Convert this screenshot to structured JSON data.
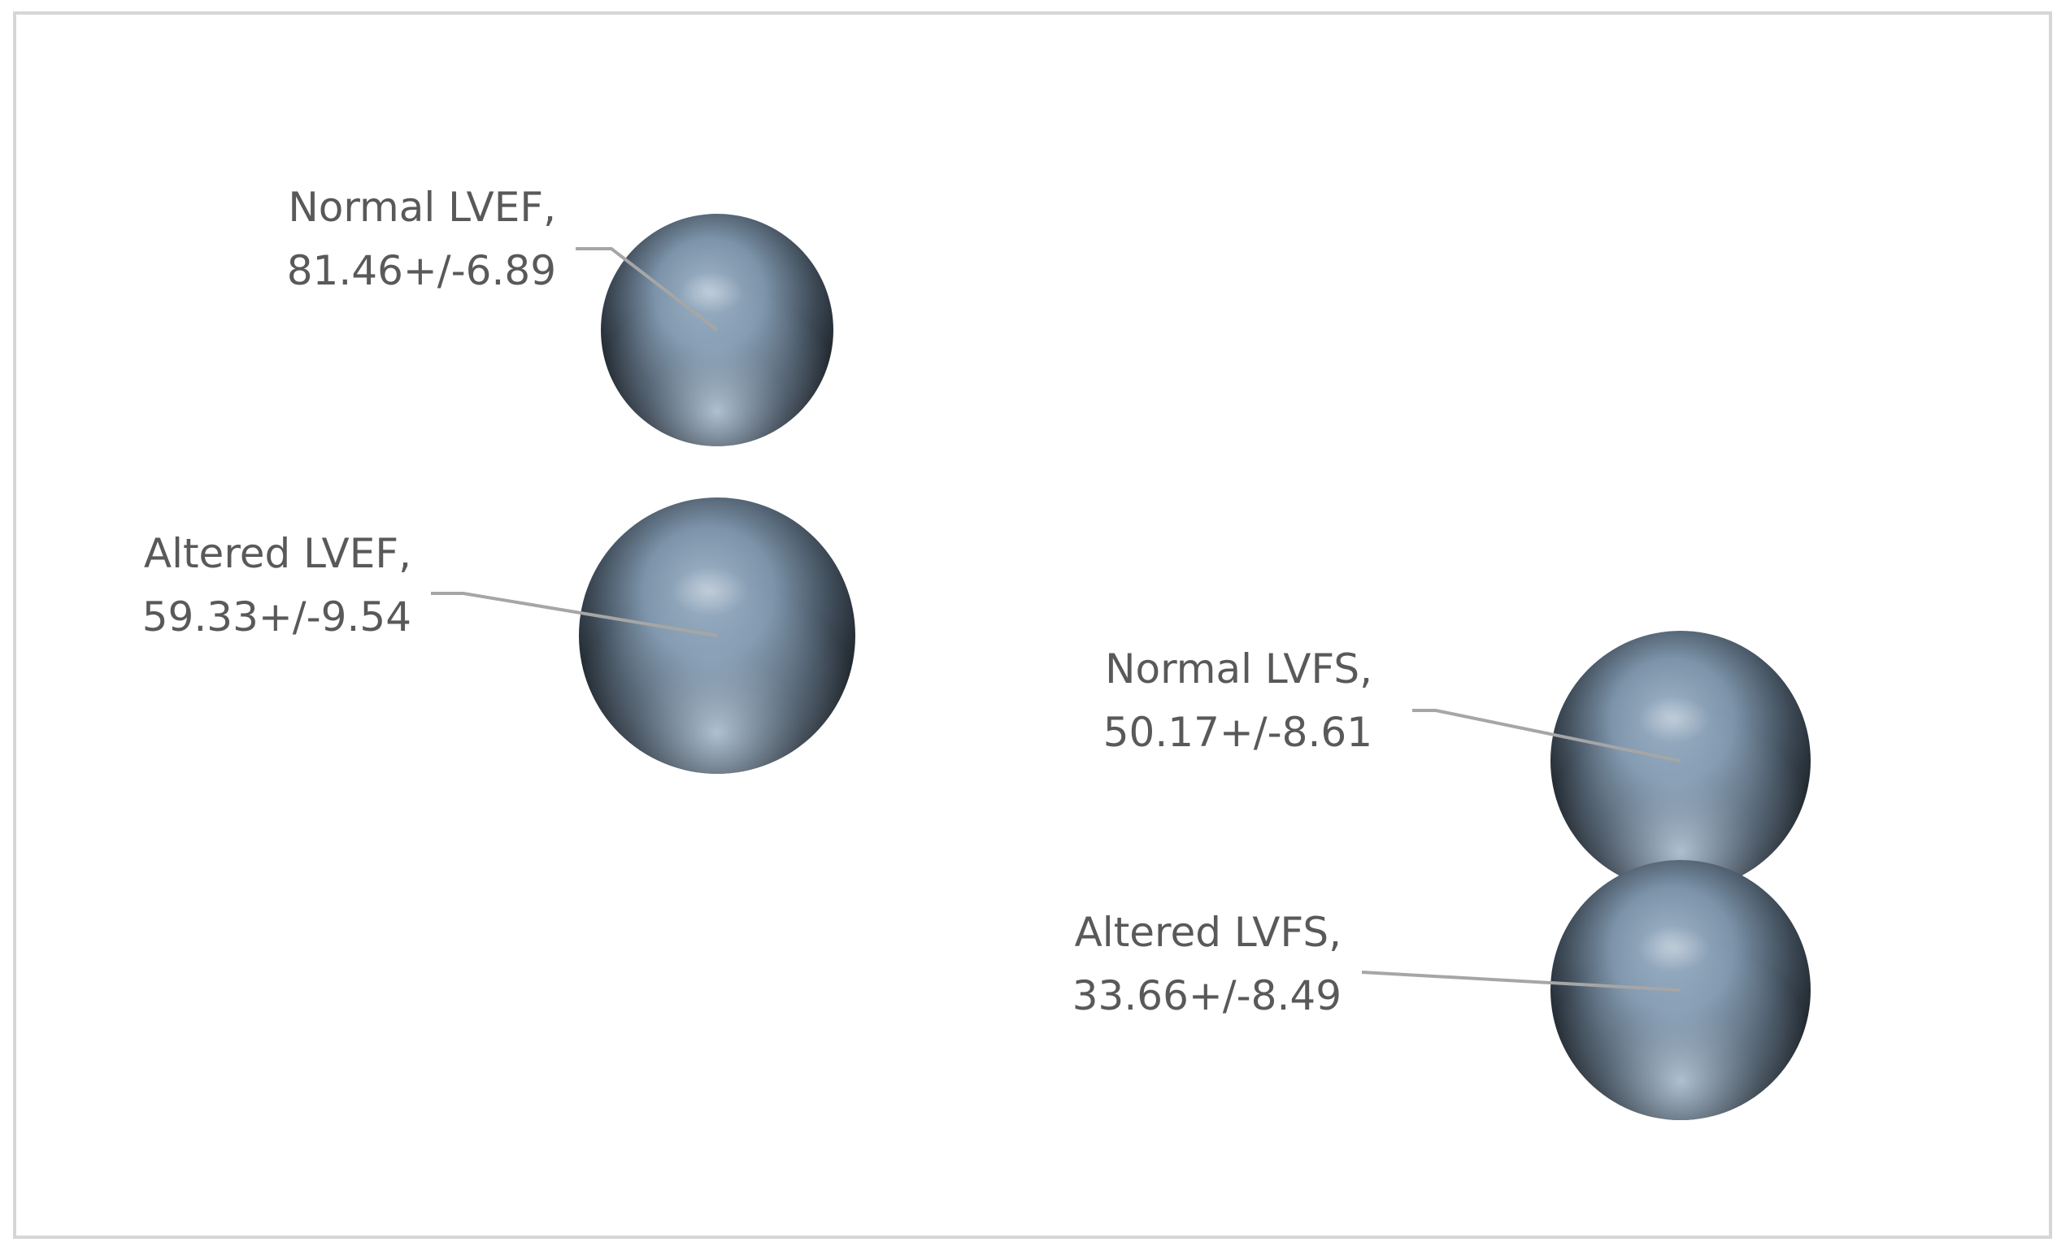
{
  "chart_data": {
    "type": "bubble",
    "title": "",
    "xlabel": "",
    "ylabel": "",
    "grid": false,
    "legend": "none",
    "colors": {
      "bubble_highlight": "#b9cde0",
      "bubble_mid": "#7d94aa",
      "bubble_dark": "#1a1f25",
      "leader_line": "#a6a6a6",
      "label_text": "#595959",
      "frame_border": "#d6d6d6"
    },
    "points": [
      {
        "category": "Normal LVEF",
        "label_line1": "Normal LVEF,",
        "label_line2": "81.46+/-6.89",
        "mean": 81.46,
        "sd": 6.89
      },
      {
        "category": "Altered LVEF",
        "label_line1": "Altered LVEF,",
        "label_line2": "59.33+/-9.54",
        "mean": 59.33,
        "sd": 9.54
      },
      {
        "category": "Normal LVFS",
        "label_line1": "Normal LVFS,",
        "label_line2": "50.17+/-8.61",
        "mean": 50.17,
        "sd": 8.61
      },
      {
        "category": "Altered LVFS",
        "label_line1": "Altered LVFS,",
        "label_line2": "33.66+/-8.49",
        "mean": 33.66,
        "sd": 8.49
      }
    ]
  }
}
